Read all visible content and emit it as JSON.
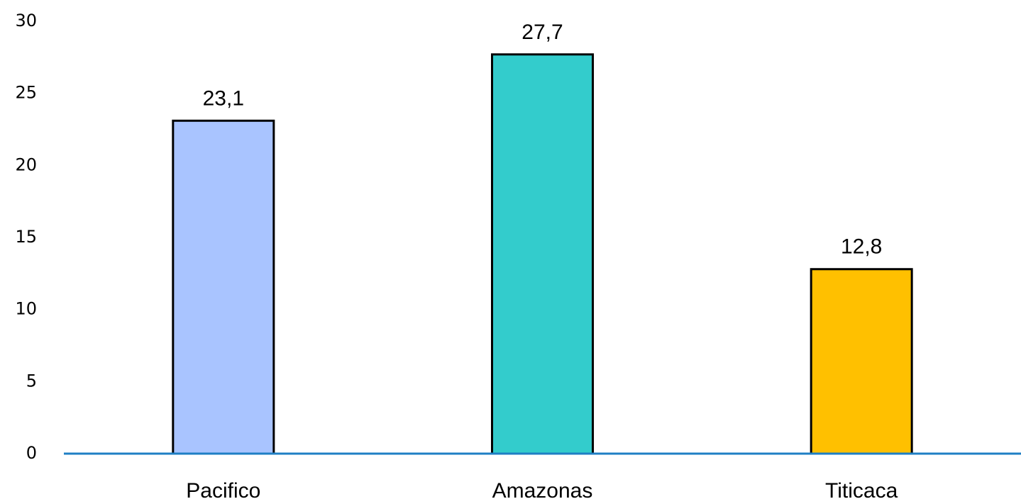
{
  "chart_data": {
    "type": "bar",
    "categories": [
      "Pacifico",
      "Amazonas",
      "Titicaca"
    ],
    "values": [
      23.1,
      27.7,
      12.8
    ],
    "data_labels": [
      "23,1",
      "27,7",
      "12,8"
    ],
    "colors": [
      "#a9c4ff",
      "#33cccc",
      "#ffc000"
    ],
    "axis_color": "#1f7fc4",
    "ylim": [
      0,
      30
    ],
    "yticks": [
      0,
      5,
      10,
      15,
      20,
      25,
      30
    ],
    "ytick_labels": [
      "0",
      "5",
      "10",
      "15",
      "20",
      "25",
      "30"
    ],
    "grid": false,
    "title": "",
    "xlabel": "",
    "ylabel": ""
  }
}
